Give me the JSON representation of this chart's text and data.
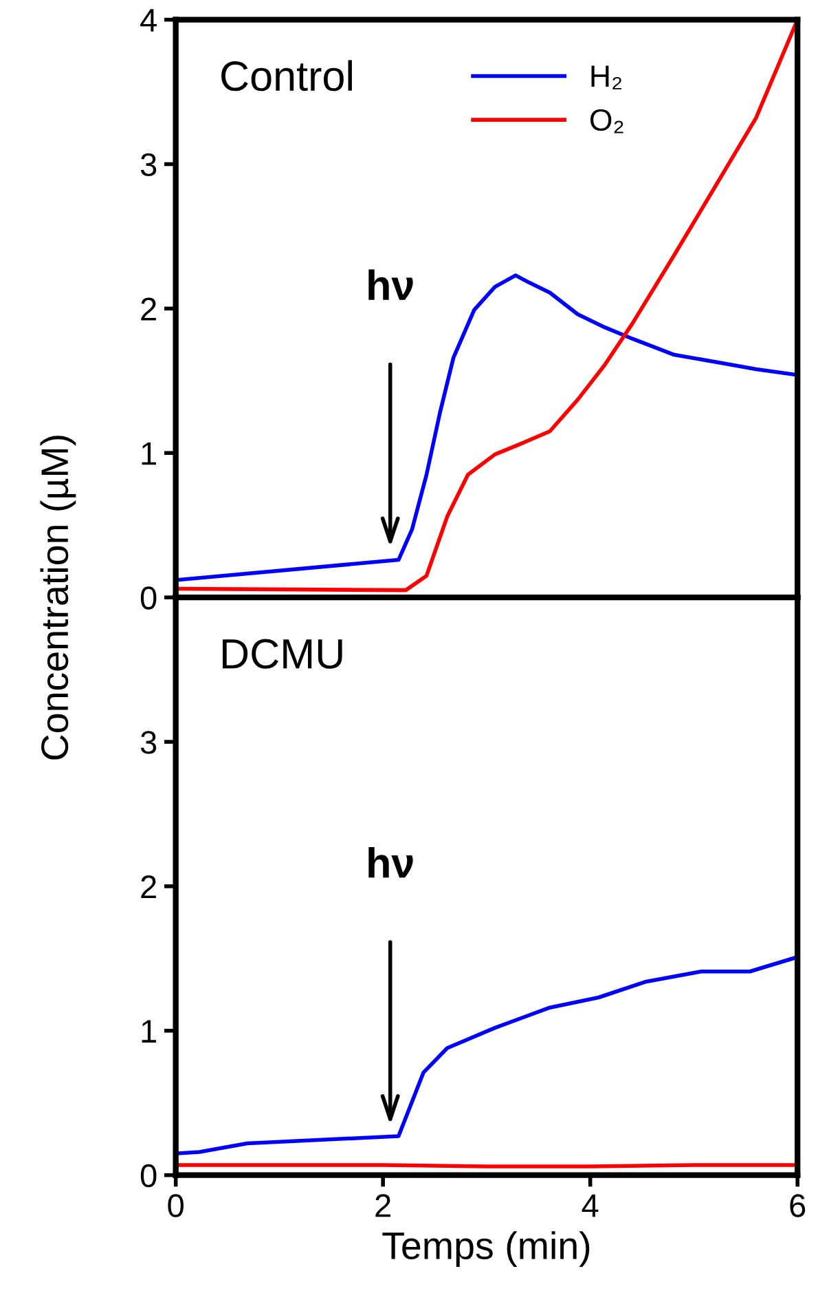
{
  "chart_data": [
    {
      "type": "line",
      "title": "Control",
      "ylabel": "Concentration (µM)",
      "xlim": [
        0,
        6
      ],
      "ylim": [
        0,
        4
      ],
      "yticks": [
        0,
        1,
        2,
        3,
        4
      ],
      "tick_labels": "y",
      "legend": "top",
      "line_style": "solid",
      "grid": false,
      "series": [
        {
          "name": "H₂",
          "color": "#0000ff",
          "x": [
            0,
            2.15,
            2.28,
            2.42,
            2.55,
            2.68,
            2.88,
            3.08,
            3.28,
            3.41,
            3.61,
            3.88,
            4.14,
            4.41,
            4.81,
            5.21,
            5.6,
            6
          ],
          "values": [
            0.12,
            0.26,
            0.47,
            0.85,
            1.28,
            1.66,
            1.99,
            2.15,
            2.23,
            2.18,
            2.11,
            1.96,
            1.87,
            1.79,
            1.68,
            1.63,
            1.58,
            1.54
          ]
        },
        {
          "name": "O₂",
          "color": "#ff0000",
          "x": [
            0,
            2.22,
            2.42,
            2.62,
            2.82,
            3.08,
            3.35,
            3.61,
            3.88,
            4.14,
            4.41,
            4.81,
            5.21,
            5.6,
            6
          ],
          "values": [
            0.06,
            0.05,
            0.15,
            0.56,
            0.85,
            0.99,
            1.07,
            1.15,
            1.37,
            1.61,
            1.9,
            2.37,
            2.85,
            3.32,
            4.0
          ]
        }
      ],
      "annotations": [
        "hν"
      ]
    },
    {
      "type": "line",
      "title": "DCMU",
      "xlabel": "Temps (min)",
      "xlim": [
        0,
        6
      ],
      "ylim": [
        0,
        4
      ],
      "xticks": [
        0,
        2,
        4,
        6
      ],
      "yticks": [
        0,
        1,
        2,
        3
      ],
      "line_style": "solid",
      "grid": false,
      "series": [
        {
          "color": "#0000ff",
          "x": [
            0,
            0.23,
            0.69,
            2.15,
            2.39,
            2.62,
            3.08,
            3.61,
            4.08,
            4.54,
            5.07,
            5.54,
            6
          ],
          "values": [
            0.15,
            0.16,
            0.22,
            0.27,
            0.71,
            0.88,
            1.02,
            1.16,
            1.23,
            1.34,
            1.41,
            1.41,
            1.51
          ]
        },
        {
          "color": "#ff0000",
          "x": [
            0,
            1,
            2,
            3,
            4,
            5,
            6
          ],
          "values": [
            0.07,
            0.07,
            0.07,
            0.06,
            0.06,
            0.07,
            0.07
          ]
        }
      ],
      "annotations": [
        "hν"
      ]
    }
  ]
}
